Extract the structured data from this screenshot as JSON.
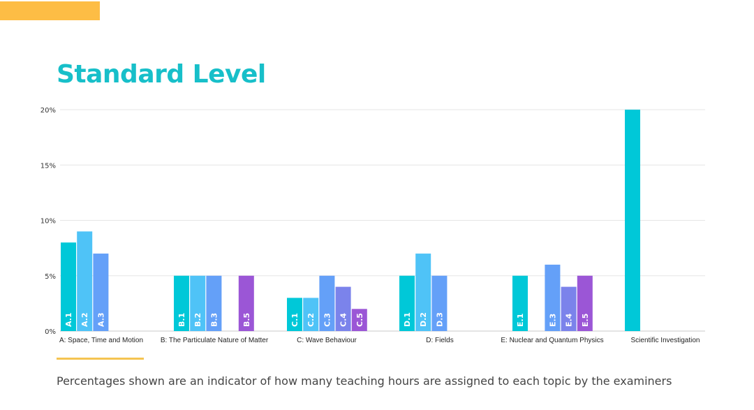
{
  "page": {
    "title": "Standard Level",
    "footnote": "Percentages shown are an indicator of how many teaching hours are assigned to each topic by the examiners"
  },
  "colors": {
    "title": "#17bfc9",
    "accent": "#fdbd45",
    "grid": "#e6e6e6"
  },
  "chart_data": {
    "type": "bar",
    "title": "Standard Level",
    "xlabel": "",
    "ylabel": "",
    "ylim": [
      0,
      20
    ],
    "yticks": [
      0,
      5,
      10,
      15,
      20
    ],
    "ytick_labels": [
      "0%",
      "5%",
      "10%",
      "15%",
      "20%"
    ],
    "grid": true,
    "groups": [
      {
        "label": "A: Space, Time and Motion",
        "bars": [
          {
            "label": "A.1",
            "value": 8,
            "color": "#00c8d8"
          },
          {
            "label": "A.2",
            "value": 9,
            "color": "#4fc3f7"
          },
          {
            "label": "A.3",
            "value": 7,
            "color": "#64a0f8"
          }
        ]
      },
      {
        "label": "B: The Particulate Nature of Matter",
        "bars": [
          {
            "label": "B.1",
            "value": 5,
            "color": "#00c8d8"
          },
          {
            "label": "B.2",
            "value": 5,
            "color": "#4fc3f7"
          },
          {
            "label": "B.3",
            "value": 5,
            "color": "#64a0f8"
          },
          {
            "label": "",
            "value": 0,
            "color": "#7b83eb"
          },
          {
            "label": "B.5",
            "value": 5,
            "color": "#9b56d6"
          }
        ]
      },
      {
        "label": "C: Wave Behaviour",
        "bars": [
          {
            "label": "C.1",
            "value": 3,
            "color": "#00c8d8"
          },
          {
            "label": "C.2",
            "value": 3,
            "color": "#4fc3f7"
          },
          {
            "label": "C.3",
            "value": 5,
            "color": "#64a0f8"
          },
          {
            "label": "C.4",
            "value": 4,
            "color": "#7b83eb"
          },
          {
            "label": "C.5",
            "value": 2,
            "color": "#9b56d6"
          }
        ]
      },
      {
        "label": "D: Fields",
        "bars": [
          {
            "label": "D.1",
            "value": 5,
            "color": "#00c8d8"
          },
          {
            "label": "D.2",
            "value": 7,
            "color": "#4fc3f7"
          },
          {
            "label": "D.3",
            "value": 5,
            "color": "#64a0f8"
          }
        ]
      },
      {
        "label": "E: Nuclear and Quantum Physics",
        "bars": [
          {
            "label": "E.1",
            "value": 5,
            "color": "#00c8d8"
          },
          {
            "label": "",
            "value": 0,
            "color": "#4fc3f7"
          },
          {
            "label": "E.3",
            "value": 6,
            "color": "#64a0f8"
          },
          {
            "label": "E.4",
            "value": 4,
            "color": "#7b83eb"
          },
          {
            "label": "E.5",
            "value": 5,
            "color": "#9b56d6"
          }
        ]
      },
      {
        "label": "Scientific Investigation",
        "bars": [
          {
            "label": "",
            "value": 20,
            "color": "#00c8d8"
          }
        ]
      }
    ]
  }
}
